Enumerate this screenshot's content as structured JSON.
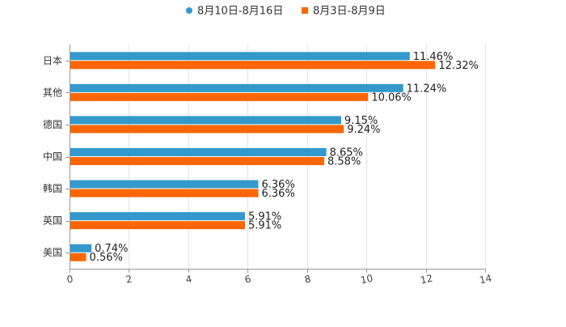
{
  "chart_data": {
    "type": "bar",
    "orientation": "horizontal",
    "title": "",
    "xlabel": "",
    "ylabel": "",
    "categories": [
      "日本",
      "其他",
      "德国",
      "中国",
      "韩国",
      "英国",
      "美国"
    ],
    "series": [
      {
        "name": "8月10日-8月16日",
        "color": "#3399cc",
        "values": [
          11.46,
          11.24,
          9.15,
          8.65,
          6.36,
          5.91,
          0.74
        ],
        "labels": [
          "11.46%",
          "11.24%",
          "9.15%",
          "8.65%",
          "6.36%",
          "5.91%",
          "0.74%"
        ]
      },
      {
        "name": "8月3日-8月9日",
        "color": "#ff6600",
        "values": [
          12.32,
          10.06,
          9.24,
          8.58,
          6.36,
          5.91,
          0.56
        ],
        "labels": [
          "12.32%",
          "10.06%",
          "9.24%",
          "8.58%",
          "6.36%",
          "5.91%",
          "0.56%"
        ]
      }
    ],
    "xlim": [
      0,
      14
    ],
    "xticks": [
      "0",
      "2",
      "4",
      "6",
      "8",
      "10",
      "12",
      "14"
    ],
    "grid": true,
    "legend_position": "top-center"
  }
}
